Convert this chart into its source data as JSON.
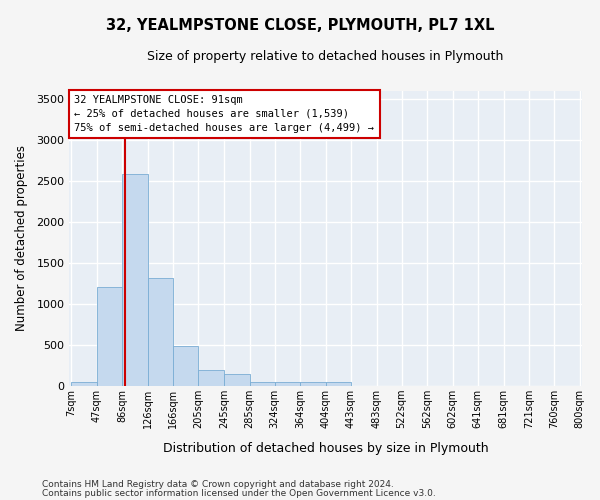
{
  "title": "32, YEALMPSTONE CLOSE, PLYMOUTH, PL7 1XL",
  "subtitle": "Size of property relative to detached houses in Plymouth",
  "xlabel": "Distribution of detached houses by size in Plymouth",
  "ylabel": "Number of detached properties",
  "bar_color": "#c5d9ee",
  "bar_edge_color": "#7aadd4",
  "fig_bg_color": "#f5f5f5",
  "plot_bg_color": "#e8eef5",
  "grid_color": "#ffffff",
  "vline_x": 91,
  "vline_color": "#cc0000",
  "annotation_lines": [
    "32 YEALMPSTONE CLOSE: 91sqm",
    "← 25% of detached houses are smaller (1,539)",
    "75% of semi-detached houses are larger (4,499) →"
  ],
  "bin_edges": [
    7,
    47,
    86,
    126,
    166,
    205,
    245,
    285,
    324,
    364,
    404,
    443,
    483,
    522,
    562,
    602,
    641,
    681,
    721,
    760,
    800
  ],
  "bin_labels": [
    "7sqm",
    "47sqm",
    "86sqm",
    "126sqm",
    "166sqm",
    "205sqm",
    "245sqm",
    "285sqm",
    "324sqm",
    "364sqm",
    "404sqm",
    "443sqm",
    "483sqm",
    "522sqm",
    "562sqm",
    "602sqm",
    "641sqm",
    "681sqm",
    "721sqm",
    "760sqm",
    "800sqm"
  ],
  "bar_heights": [
    50,
    1200,
    2580,
    1320,
    480,
    195,
    145,
    50,
    50,
    50,
    50,
    0,
    0,
    0,
    0,
    0,
    0,
    0,
    0,
    0
  ],
  "ylim": [
    0,
    3600
  ],
  "yticks": [
    0,
    500,
    1000,
    1500,
    2000,
    2500,
    3000,
    3500
  ],
  "footnote1": "Contains HM Land Registry data © Crown copyright and database right 2024.",
  "footnote2": "Contains public sector information licensed under the Open Government Licence v3.0."
}
